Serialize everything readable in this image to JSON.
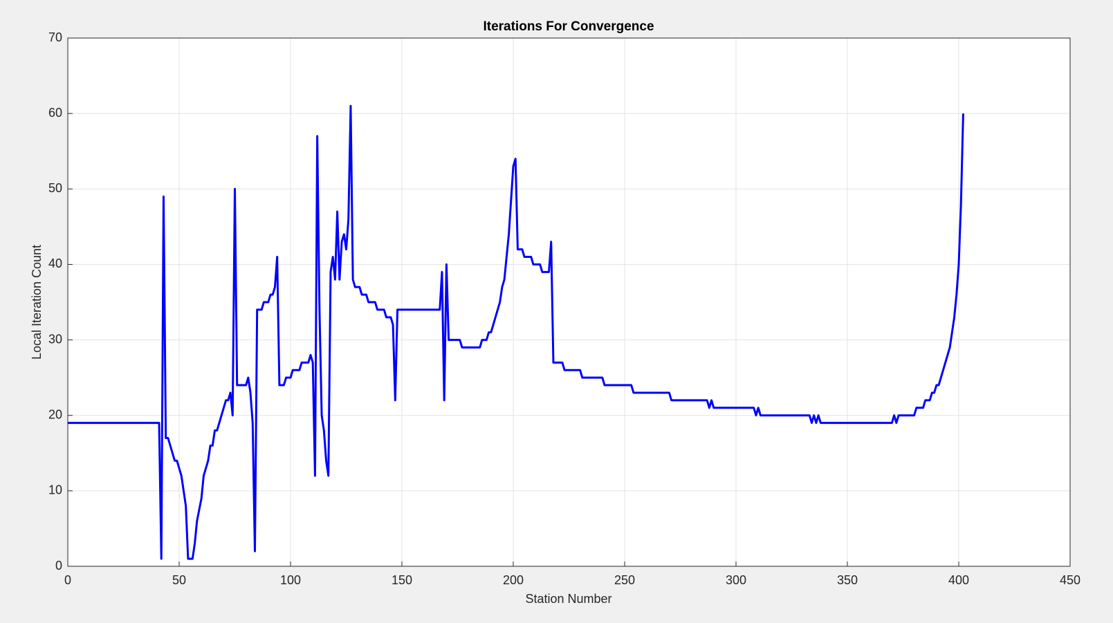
{
  "chart_data": {
    "type": "line",
    "title": "Iterations For Convergence",
    "x_label": "Station Number",
    "y_label": "Local Iteration Count",
    "xlim": [
      0,
      450
    ],
    "xticks": [
      0,
      50,
      100,
      150,
      200,
      250,
      300,
      350,
      400,
      450
    ],
    "ylim": [
      0,
      70
    ],
    "yticks": [
      0,
      10,
      20,
      30,
      40,
      50,
      60,
      70
    ],
    "grid": true,
    "x": [
      0,
      41,
      42,
      43,
      44,
      45,
      46,
      47,
      48,
      49,
      50,
      51,
      52,
      53,
      54,
      56,
      57,
      58,
      60,
      61,
      63,
      64,
      65,
      66,
      67,
      68,
      69,
      70,
      71,
      72,
      73,
      74,
      75,
      76,
      80,
      81,
      82,
      83,
      84,
      85,
      87,
      88,
      90,
      91,
      92,
      93,
      94,
      95,
      97,
      98,
      100,
      101,
      104,
      105,
      108,
      109,
      110,
      111,
      112,
      113,
      114,
      115,
      116,
      117,
      118,
      119,
      120,
      121,
      122,
      123,
      124,
      125,
      126,
      127,
      128,
      129,
      131,
      132,
      134,
      135,
      138,
      139,
      142,
      143,
      145,
      146,
      147,
      148,
      167,
      168,
      169,
      170,
      171,
      176,
      177,
      185,
      186,
      188,
      189,
      190,
      192,
      194,
      195,
      196,
      198,
      200,
      201,
      202,
      204,
      205,
      208,
      209,
      212,
      213,
      216,
      217,
      218,
      222,
      223,
      230,
      231,
      240,
      241,
      253,
      254,
      270,
      271,
      287,
      288,
      289,
      290,
      308,
      309,
      310,
      311,
      333,
      334,
      335,
      336,
      337,
      338,
      370,
      371,
      372,
      373,
      380,
      381,
      384,
      385,
      387,
      388,
      389,
      390,
      391,
      392,
      394,
      396,
      398,
      399,
      400,
      401,
      402
    ],
    "series": [
      {
        "name": "Local Iteration Count",
        "color": "#0000ff",
        "values": [
          19,
          19,
          1,
          49,
          17,
          17,
          16,
          15,
          14,
          14,
          13,
          12,
          10,
          8,
          1,
          1,
          3,
          6,
          9,
          12,
          14,
          16,
          16,
          18,
          18,
          19,
          20,
          21,
          22,
          22,
          23,
          20,
          50,
          24,
          24,
          25,
          23,
          19,
          2,
          34,
          34,
          35,
          35,
          36,
          36,
          37,
          41,
          24,
          24,
          25,
          25,
          26,
          26,
          27,
          27,
          28,
          27,
          12,
          57,
          34,
          20,
          18,
          14,
          12,
          39,
          41,
          38,
          47,
          38,
          43,
          44,
          42,
          46,
          61,
          38,
          37,
          37,
          36,
          36,
          35,
          35,
          34,
          34,
          33,
          33,
          32,
          22,
          34,
          34,
          39,
          22,
          40,
          30,
          30,
          29,
          29,
          30,
          30,
          31,
          31,
          33,
          35,
          37,
          38,
          44,
          53,
          54,
          42,
          42,
          41,
          41,
          40,
          40,
          39,
          39,
          43,
          27,
          27,
          26,
          26,
          25,
          25,
          24,
          24,
          23,
          23,
          22,
          22,
          21,
          22,
          21,
          21,
          20,
          21,
          20,
          20,
          19,
          20,
          19,
          20,
          19,
          19,
          20,
          19,
          20,
          20,
          21,
          21,
          22,
          22,
          23,
          23,
          24,
          24,
          25,
          27,
          29,
          33,
          36,
          40,
          48,
          60
        ]
      }
    ]
  }
}
